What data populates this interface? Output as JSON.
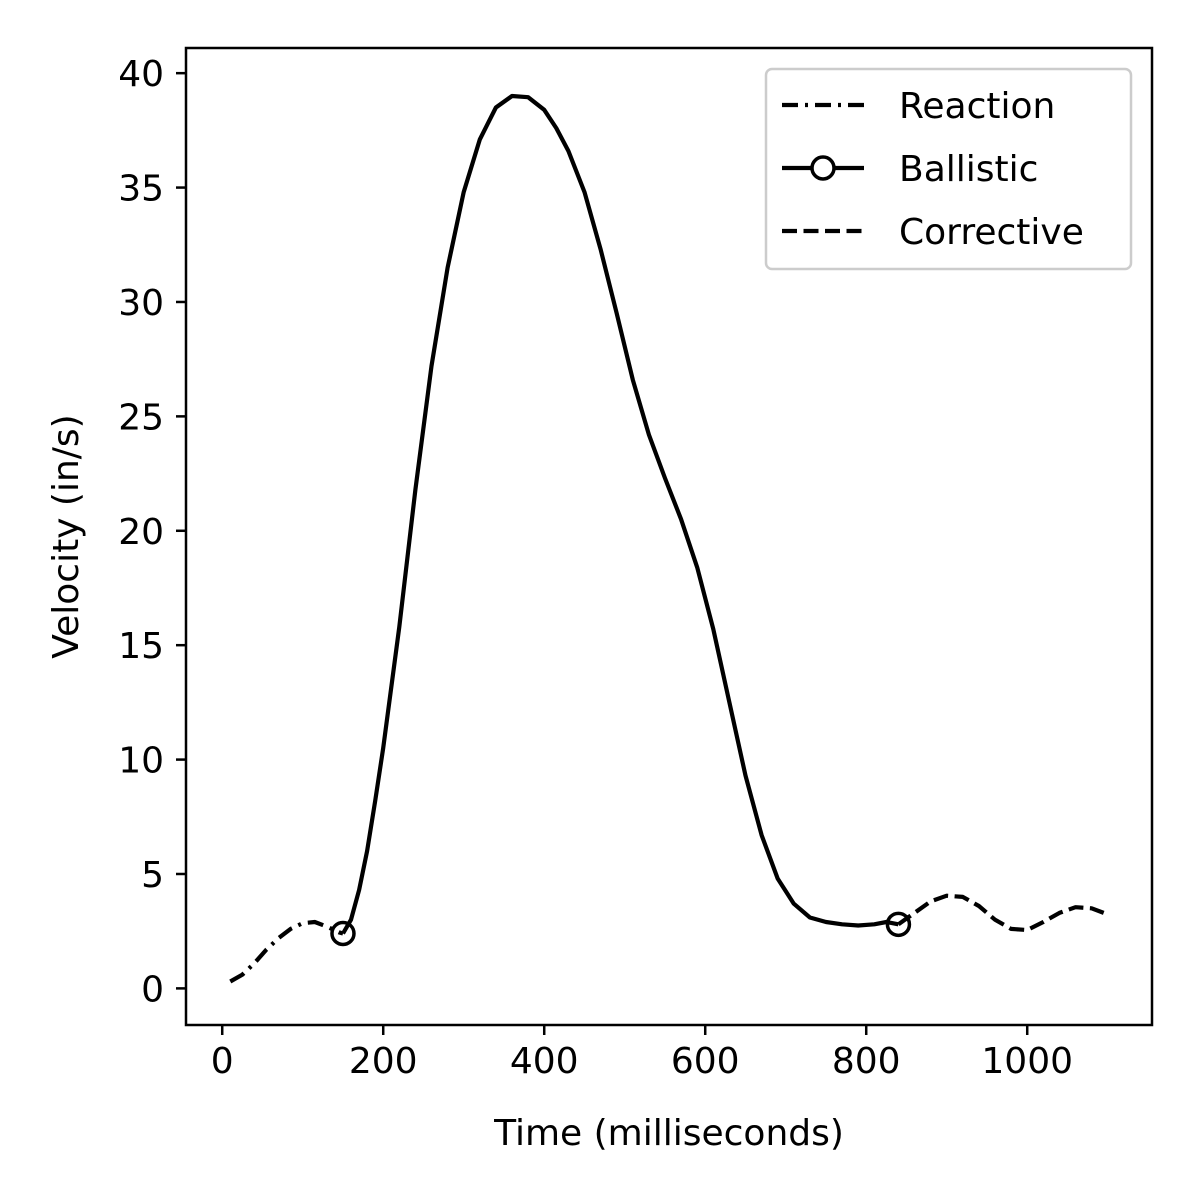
{
  "chart_data": {
    "type": "line",
    "title": "",
    "xlabel": "Time (milliseconds)",
    "ylabel": "Velocity (in/s)",
    "xlim": [
      -45,
      1155
    ],
    "ylim": [
      -1.6,
      41.1
    ],
    "xticks": [
      0,
      200,
      400,
      600,
      800,
      1000
    ],
    "yticks": [
      0,
      5,
      10,
      15,
      20,
      25,
      30,
      35,
      40
    ],
    "grid": false,
    "legend_position": "upper right",
    "series": [
      {
        "name": "Reaction",
        "style": "dash-dot",
        "marker": "none",
        "color": "#000000",
        "x": [
          10,
          25,
          40,
          55,
          70,
          85,
          100,
          115,
          130,
          145,
          150
        ],
        "y": [
          0.3,
          0.6,
          1.1,
          1.7,
          2.2,
          2.6,
          2.85,
          2.9,
          2.7,
          2.45,
          2.4
        ]
      },
      {
        "name": "Ballistic",
        "style": "solid",
        "marker": "circle-endpoints",
        "color": "#000000",
        "x": [
          150,
          160,
          170,
          180,
          190,
          200,
          220,
          240,
          260,
          280,
          300,
          320,
          340,
          360,
          380,
          400,
          415,
          430,
          450,
          470,
          490,
          510,
          530,
          550,
          570,
          590,
          610,
          630,
          650,
          670,
          690,
          710,
          730,
          750,
          770,
          790,
          810,
          825,
          840
        ],
        "y": [
          2.4,
          3.0,
          4.3,
          6.0,
          8.2,
          10.5,
          15.8,
          21.8,
          27.2,
          31.5,
          34.8,
          37.1,
          38.5,
          39.0,
          38.95,
          38.4,
          37.6,
          36.6,
          34.8,
          32.3,
          29.5,
          26.6,
          24.2,
          22.3,
          20.5,
          18.4,
          15.7,
          12.5,
          9.3,
          6.7,
          4.8,
          3.7,
          3.1,
          2.9,
          2.8,
          2.75,
          2.8,
          2.9,
          2.8
        ],
        "x_markers": [
          150,
          840
        ],
        "y_markers": [
          2.4,
          2.8
        ]
      },
      {
        "name": "Corrective",
        "style": "dashed",
        "marker": "none",
        "color": "#000000",
        "x": [
          840,
          860,
          880,
          900,
          920,
          940,
          960,
          980,
          1000,
          1020,
          1040,
          1060,
          1080,
          1095
        ],
        "y": [
          2.8,
          3.3,
          3.8,
          4.05,
          4.0,
          3.6,
          3.0,
          2.6,
          2.55,
          2.9,
          3.3,
          3.55,
          3.5,
          3.3
        ]
      }
    ]
  }
}
